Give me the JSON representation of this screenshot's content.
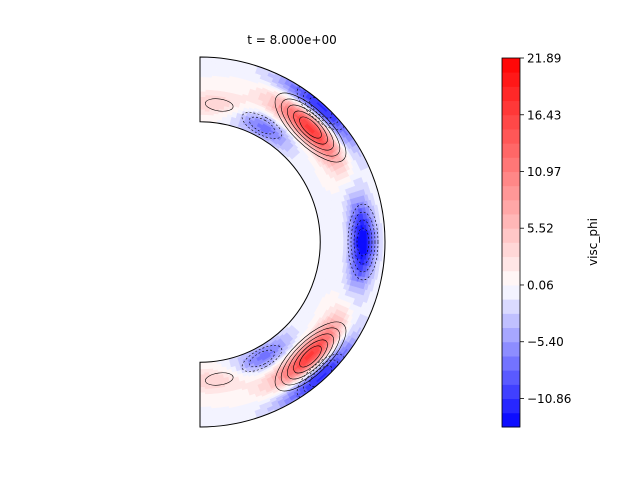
{
  "chart_data": {
    "type": "heatmap",
    "plot": "filled contour on a polar annulus (meridional section)",
    "title": "t = 8.000e+00",
    "variable": "visc_phi",
    "colormap": "bwr",
    "colorbar": {
      "label": "visc_phi",
      "range": [
        -13.6,
        21.89
      ],
      "ticks": [
        21.89,
        16.43,
        10.97,
        5.52,
        0.06,
        -5.4,
        -10.86
      ],
      "tick_labels": [
        "21.89",
        "16.43",
        "10.97",
        "5.52",
        "0.06",
        "−5.40",
        "−10.86"
      ],
      "levels": [
        -13.6,
        -12.23,
        -10.86,
        -9.5,
        -8.13,
        -6.77,
        -5.4,
        -4.03,
        -2.67,
        -1.3,
        0.06,
        1.43,
        2.79,
        4.16,
        5.52,
        6.89,
        8.25,
        9.61,
        10.97,
        12.34,
        13.7,
        15.07,
        16.43,
        17.8,
        19.16,
        20.53,
        21.89
      ]
    },
    "domain": {
      "radius_ratio": 0.65,
      "theta_range_deg": [
        -90,
        90
      ]
    },
    "features": [
      {
        "name": "equatorial negative cell",
        "r": 0.66,
        "theta_deg": 0,
        "value": -13.6
      },
      {
        "name": "upper positive band",
        "r": 0.6,
        "theta_deg": 46,
        "value": 17.5
      },
      {
        "name": "lower positive band",
        "r": 0.6,
        "theta_deg": -46,
        "value": 17.5
      },
      {
        "name": "upper outer negative band",
        "r": 0.93,
        "theta_deg": 48,
        "value": -12
      },
      {
        "name": "lower outer negative band",
        "r": 0.93,
        "theta_deg": -48,
        "value": -12
      },
      {
        "name": "upper inner negative cell",
        "r": 0.18,
        "theta_deg": 62,
        "value": -8
      },
      {
        "name": "lower inner negative cell",
        "r": 0.18,
        "theta_deg": -62,
        "value": -8
      },
      {
        "name": "upper polar positive cell",
        "r": 0.28,
        "theta_deg": 82,
        "value": 5
      },
      {
        "name": "lower polar positive cell",
        "r": 0.28,
        "theta_deg": -82,
        "value": 5
      }
    ]
  }
}
